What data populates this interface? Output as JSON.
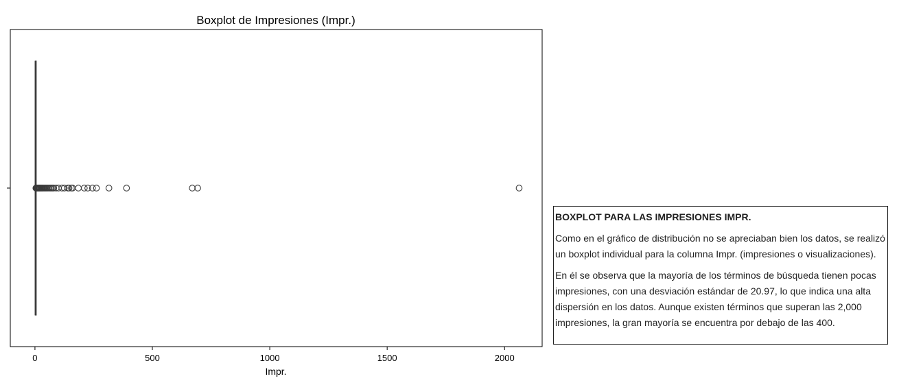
{
  "chart_data": {
    "type": "boxplot",
    "title": "Boxplot de Impresiones (Impr.)",
    "xlabel": "Impr.",
    "ylabel": "",
    "xlim": [
      -105,
      2160
    ],
    "xticks": [
      0,
      500,
      1000,
      1500,
      2000
    ],
    "box": {
      "q1": 1,
      "median": 1,
      "q3": 2,
      "whisker_low": 1,
      "whisker_high": 3
    },
    "outliers": [
      4,
      6,
      8,
      10,
      12,
      14,
      16,
      18,
      20,
      22,
      25,
      28,
      31,
      34,
      38,
      42,
      46,
      50,
      55,
      60,
      65,
      70,
      75,
      80,
      90,
      100,
      115,
      125,
      140,
      145,
      155,
      160,
      185,
      210,
      225,
      245,
      262,
      315,
      390,
      670,
      693,
      2062
    ],
    "colors": {
      "stroke": "#3a3a3a",
      "axis": "#000000"
    }
  },
  "note": {
    "heading": "BOXPLOT PARA LAS IMPRESIONES IMPR.",
    "p1": "Como en el gráfico de distribución no se apreciaban bien los datos, se realizó un boxplot individual para la columna Impr. (impresiones o visualizaciones).",
    "p2": "En él se observa que la mayoría de los términos de búsqueda tienen pocas impresiones, con una desviación estándar de 20.97, lo que indica una alta dispersión en los datos. Aunque existen términos que superan las 2,000 impresiones, la gran mayoría se encuentra por debajo de las 400."
  }
}
